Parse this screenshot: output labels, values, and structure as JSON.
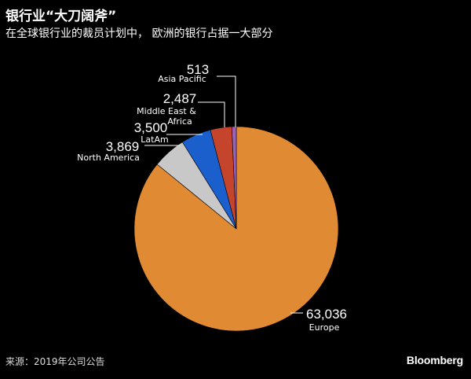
{
  "header": {
    "title": "银行业“大刀阔斧”",
    "subtitle": "在全球银行业的裁员计划中， 欧洲的银行占据一大部分"
  },
  "footer": {
    "source": "来源：2019年公司公告",
    "brand": "Bloomberg"
  },
  "chart_data": {
    "type": "pie",
    "slices": [
      {
        "name": "Europe",
        "value_label": "63,036",
        "value": 63036,
        "color": "#e08a34"
      },
      {
        "name": "North America",
        "value_label": "3,869",
        "value": 3869,
        "color": "#c8c8c8"
      },
      {
        "name": "LatAm",
        "value_label": "3,500",
        "value": 3500,
        "color": "#1b5fcc"
      },
      {
        "name": "Middle East & Africa",
        "name_lines": [
          "Middle East &",
          "Africa"
        ],
        "value_label": "2,487",
        "value": 2487,
        "color": "#c4452b"
      },
      {
        "name": "Asia Pacific",
        "value_label": "513",
        "value": 513,
        "color": "#9a63b8"
      }
    ]
  }
}
